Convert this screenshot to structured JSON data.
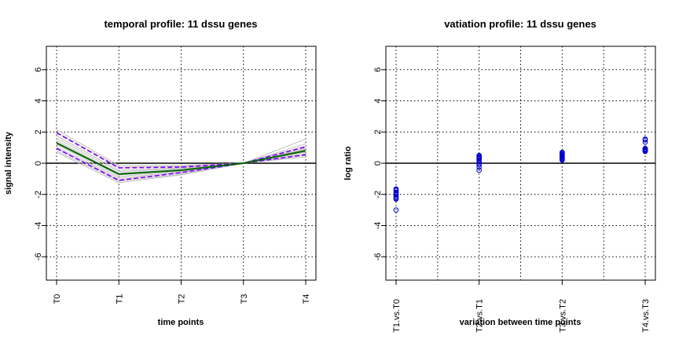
{
  "chart_data": [
    {
      "type": "line",
      "title": "temporal profile: 11 dssu genes",
      "xlabel": "time points",
      "ylabel": "signal intensity",
      "categories": [
        "T0",
        "T1",
        "T2",
        "T3",
        "T4"
      ],
      "yticks": [
        "6",
        "4",
        "2",
        "0",
        "-2",
        "-4",
        "-6"
      ],
      "ylim": [
        -7.5,
        7.5
      ],
      "grid": true,
      "colors": {
        "mean": "#006400",
        "band": "#7f00ff",
        "genes": "#c0c0c0",
        "zero_line": "#000000"
      },
      "series": [
        {
          "values": [
            1.3,
            -0.7,
            -0.45,
            0.0,
            0.8
          ]
        },
        {
          "values": [
            1.95,
            -0.3,
            -0.25,
            0.0,
            1.05
          ]
        },
        {
          "values": [
            0.95,
            -1.1,
            -0.6,
            0.0,
            0.55
          ]
        },
        {
          "values": [
            2.15,
            -0.15,
            -0.15,
            0.0,
            1.55
          ]
        },
        {
          "values": [
            2.0,
            -0.25,
            -0.2,
            0.0,
            1.25
          ]
        },
        {
          "values": [
            1.75,
            -0.45,
            -0.3,
            0.0,
            1.1
          ]
        },
        {
          "values": [
            1.6,
            -0.55,
            -0.35,
            0.0,
            0.95
          ]
        },
        {
          "values": [
            1.45,
            -0.65,
            -0.4,
            0.0,
            0.9
          ]
        },
        {
          "values": [
            1.3,
            -0.75,
            -0.45,
            0.0,
            0.85
          ]
        },
        {
          "values": [
            1.2,
            -0.85,
            -0.5,
            0.0,
            0.75
          ]
        },
        {
          "values": [
            1.05,
            -0.95,
            -0.55,
            0.0,
            0.7
          ]
        },
        {
          "values": [
            0.95,
            -1.05,
            -0.6,
            0.0,
            0.6
          ]
        },
        {
          "values": [
            0.8,
            -1.15,
            -0.7,
            0.0,
            0.5
          ]
        },
        {
          "values": [
            0.7,
            -1.25,
            -0.75,
            0.0,
            0.4
          ]
        }
      ]
    },
    {
      "type": "scatter",
      "title": "vatiation profile: 11 dssu genes",
      "xlabel": "variation between time points",
      "ylabel": "log ratio",
      "categories": [
        "T1.vs.T0",
        "T2.vs.T1",
        "T3.vs.T2",
        "T4.vs.T3"
      ],
      "yticks": [
        "6",
        "4",
        "2",
        "0",
        "-2",
        "-4",
        "-6"
      ],
      "ylim": [
        -7.5,
        7.5
      ],
      "grid": true,
      "colors": {
        "points": "#0000cc",
        "zero_line": "#000000"
      },
      "series": [
        {
          "values": [
            -1.65,
            -1.75,
            -1.85,
            -2.0,
            -2.1,
            -2.25,
            -2.3,
            -3.0,
            -1.9,
            -2.2,
            -1.7
          ]
        },
        {
          "values": [
            0.5,
            0.4,
            0.3,
            0.2,
            0.1,
            0.0,
            -0.1,
            -0.25,
            -0.45,
            0.45,
            0.35
          ]
        },
        {
          "values": [
            0.7,
            0.6,
            0.5,
            0.4,
            0.3,
            0.25,
            0.2,
            0.55,
            0.65,
            0.45,
            0.35
          ]
        },
        {
          "values": [
            1.55,
            1.35,
            0.9,
            0.85,
            0.8,
            0.75,
            0.95,
            0.85,
            1.5,
            0.8,
            0.9
          ]
        }
      ]
    }
  ]
}
